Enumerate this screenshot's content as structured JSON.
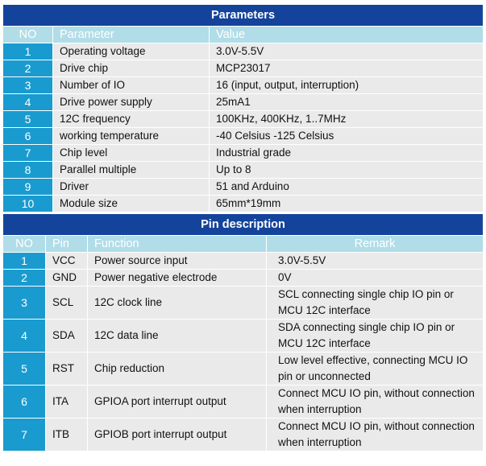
{
  "parameters": {
    "title": "Parameters",
    "headers": {
      "no": "NO",
      "parameter": "Parameter",
      "value": "Value"
    },
    "rows": [
      {
        "no": "1",
        "parameter": "Operating voltage",
        "value": "3.0V-5.5V"
      },
      {
        "no": "2",
        "parameter": "Drive chip",
        "value": "MCP23017"
      },
      {
        "no": "3",
        "parameter": "Number of IO",
        "value": "16 (input, output, interruption)"
      },
      {
        "no": "4",
        "parameter": "Drive power supply",
        "value": "25mA1"
      },
      {
        "no": "5",
        "parameter": "12C frequency",
        "value": "100KHz, 400KHz, 1..7MHz"
      },
      {
        "no": "6",
        "parameter": "working temperature",
        "value": "-40 Celsius -125  Celsius"
      },
      {
        "no": "7",
        "parameter": "Chip level",
        "value": "Industrial grade"
      },
      {
        "no": "8",
        "parameter": "Parallel multiple",
        "value": "Up to 8"
      },
      {
        "no": "9",
        "parameter": "Driver",
        "value": "51 and Arduino"
      },
      {
        "no": "10",
        "parameter": "Module size",
        "value": "65mm*19mm"
      }
    ]
  },
  "pins": {
    "title": "Pin description",
    "headers": {
      "no": "NO",
      "pin": "Pin",
      "function": "Function",
      "remark": "Remark"
    },
    "rows": [
      {
        "no": "1",
        "pin": "VCC",
        "function": "Power source input",
        "remark_lines": [
          "3.0V-5.5V"
        ]
      },
      {
        "no": "2",
        "pin": "GND",
        "function": "Power negative electrode",
        "remark_lines": [
          "0V"
        ]
      },
      {
        "no": "3",
        "pin": "SCL",
        "function": "12C clock line",
        "remark_lines": [
          "SCL connecting single chip IO pin or",
          "MCU 12C interface"
        ]
      },
      {
        "no": "4",
        "pin": "SDA",
        "function": "12C data line",
        "remark_lines": [
          "SDA connecting single chip IO pin or",
          "MCU 12C interface"
        ]
      },
      {
        "no": "5",
        "pin": "RST",
        "function": "Chip reduction",
        "remark_lines": [
          "Low level effective, connecting MCU IO",
          "pin or unconnected"
        ]
      },
      {
        "no": "6",
        "pin": "ITA",
        "function": "GPIOA port interrupt output",
        "remark_lines": [
          "Connect MCU IO pin, without connection",
          "when interruption"
        ]
      },
      {
        "no": "7",
        "pin": "ITB",
        "function": "GPIOB port interrupt output",
        "remark_lines": [
          "Connect MCU IO pin, without connection",
          "when interruption"
        ]
      }
    ]
  },
  "colors": {
    "title_bg": "#14439b",
    "header_bg": "#b0dde8",
    "no_bg": "#199bd0",
    "cell_bg": "#eaeaea"
  }
}
